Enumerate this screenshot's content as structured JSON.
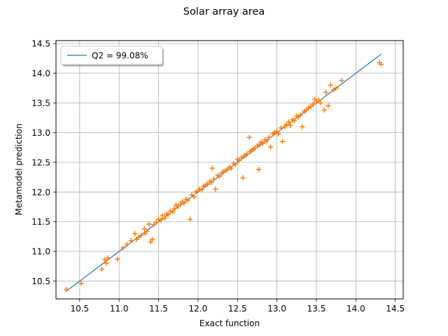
{
  "chart_data": {
    "type": "scatter",
    "title": "Solar array area",
    "xlabel": "Exact function",
    "ylabel": "Metamodel prediction",
    "xlim": [
      10.2,
      14.6
    ],
    "ylim": [
      10.2,
      14.55
    ],
    "xticks": [
      10.5,
      11.0,
      11.5,
      12.0,
      12.5,
      13.0,
      13.5,
      14.0,
      14.5
    ],
    "yticks": [
      10.5,
      11.0,
      11.5,
      12.0,
      12.5,
      13.0,
      13.5,
      14.0,
      14.5
    ],
    "xtick_labels": [
      "10.5",
      "11.0",
      "11.5",
      "12.0",
      "12.5",
      "13.0",
      "13.5",
      "14.0",
      "14.5"
    ],
    "ytick_labels": [
      "10.5",
      "11.0",
      "11.5",
      "12.0",
      "12.5",
      "13.0",
      "13.5",
      "14.0",
      "14.5"
    ],
    "grid": true,
    "legend_position": "top-left",
    "line": {
      "name": "Q2 = 99.08%",
      "color": "#1f77b4",
      "x": [
        10.33,
        14.32
      ],
      "y": [
        10.33,
        14.32
      ]
    },
    "points_color": "#ff7f0e",
    "points": [
      [
        10.33,
        10.36
      ],
      [
        10.52,
        10.46
      ],
      [
        10.78,
        10.7
      ],
      [
        10.82,
        10.86
      ],
      [
        10.84,
        10.8
      ],
      [
        10.86,
        10.89
      ],
      [
        10.98,
        10.87
      ],
      [
        11.05,
        11.06
      ],
      [
        11.1,
        11.12
      ],
      [
        11.15,
        11.18
      ],
      [
        11.2,
        11.3
      ],
      [
        11.22,
        11.2
      ],
      [
        11.25,
        11.24
      ],
      [
        11.28,
        11.27
      ],
      [
        11.32,
        11.38
      ],
      [
        11.33,
        11.3
      ],
      [
        11.35,
        11.34
      ],
      [
        11.38,
        11.46
      ],
      [
        11.4,
        11.16
      ],
      [
        11.42,
        11.2
      ],
      [
        11.44,
        11.45
      ],
      [
        11.47,
        11.49
      ],
      [
        11.5,
        11.54
      ],
      [
        11.53,
        11.53
      ],
      [
        11.55,
        11.6
      ],
      [
        11.58,
        11.56
      ],
      [
        11.6,
        11.63
      ],
      [
        11.62,
        11.62
      ],
      [
        11.65,
        11.68
      ],
      [
        11.68,
        11.66
      ],
      [
        11.7,
        11.72
      ],
      [
        11.72,
        11.78
      ],
      [
        11.75,
        11.76
      ],
      [
        11.78,
        11.8
      ],
      [
        11.8,
        11.84
      ],
      [
        11.82,
        11.81
      ],
      [
        11.85,
        11.88
      ],
      [
        11.87,
        11.86
      ],
      [
        11.9,
        11.54
      ],
      [
        11.92,
        11.95
      ],
      [
        11.95,
        11.92
      ],
      [
        11.97,
        12.0
      ],
      [
        12.0,
        12.02
      ],
      [
        12.02,
        12.05
      ],
      [
        12.05,
        12.04
      ],
      [
        12.07,
        12.1
      ],
      [
        12.1,
        12.12
      ],
      [
        12.12,
        12.13
      ],
      [
        12.15,
        12.18
      ],
      [
        12.17,
        12.16
      ],
      [
        12.18,
        12.4
      ],
      [
        12.2,
        12.22
      ],
      [
        12.22,
        12.05
      ],
      [
        12.25,
        12.28
      ],
      [
        12.27,
        12.26
      ],
      [
        12.3,
        12.32
      ],
      [
        12.32,
        12.34
      ],
      [
        12.35,
        12.36
      ],
      [
        12.37,
        12.38
      ],
      [
        12.4,
        12.42
      ],
      [
        12.42,
        12.4
      ],
      [
        12.45,
        12.48
      ],
      [
        12.47,
        12.46
      ],
      [
        12.5,
        12.55
      ],
      [
        12.52,
        12.53
      ],
      [
        12.55,
        12.58
      ],
      [
        12.57,
        12.24
      ],
      [
        12.58,
        12.6
      ],
      [
        12.6,
        12.62
      ],
      [
        12.62,
        12.64
      ],
      [
        12.65,
        12.92
      ],
      [
        12.66,
        12.68
      ],
      [
        12.68,
        12.7
      ],
      [
        12.7,
        12.72
      ],
      [
        12.72,
        12.74
      ],
      [
        12.75,
        12.78
      ],
      [
        12.77,
        12.38
      ],
      [
        12.78,
        12.8
      ],
      [
        12.8,
        12.84
      ],
      [
        12.82,
        12.82
      ],
      [
        12.85,
        12.88
      ],
      [
        12.87,
        12.86
      ],
      [
        12.9,
        12.92
      ],
      [
        12.92,
        12.76
      ],
      [
        12.95,
        12.98
      ],
      [
        12.97,
        13.0
      ],
      [
        13.0,
        13.02
      ],
      [
        13.02,
        12.98
      ],
      [
        13.05,
        13.08
      ],
      [
        13.07,
        12.85
      ],
      [
        13.1,
        13.1
      ],
      [
        13.12,
        13.14
      ],
      [
        13.15,
        13.18
      ],
      [
        13.17,
        13.12
      ],
      [
        13.2,
        13.22
      ],
      [
        13.22,
        13.2
      ],
      [
        13.25,
        13.28
      ],
      [
        13.27,
        13.26
      ],
      [
        13.3,
        13.3
      ],
      [
        13.32,
        13.1
      ],
      [
        13.35,
        13.36
      ],
      [
        13.37,
        13.38
      ],
      [
        13.4,
        13.42
      ],
      [
        13.43,
        13.44
      ],
      [
        13.46,
        13.48
      ],
      [
        13.48,
        13.56
      ],
      [
        13.5,
        13.52
      ],
      [
        13.53,
        13.55
      ],
      [
        13.55,
        13.5
      ],
      [
        13.6,
        13.38
      ],
      [
        13.62,
        13.68
      ],
      [
        13.65,
        13.45
      ],
      [
        13.68,
        13.8
      ],
      [
        13.72,
        13.72
      ],
      [
        13.75,
        13.75
      ],
      [
        13.82,
        13.88
      ],
      [
        14.3,
        14.18
      ],
      [
        14.32,
        14.15
      ]
    ]
  }
}
